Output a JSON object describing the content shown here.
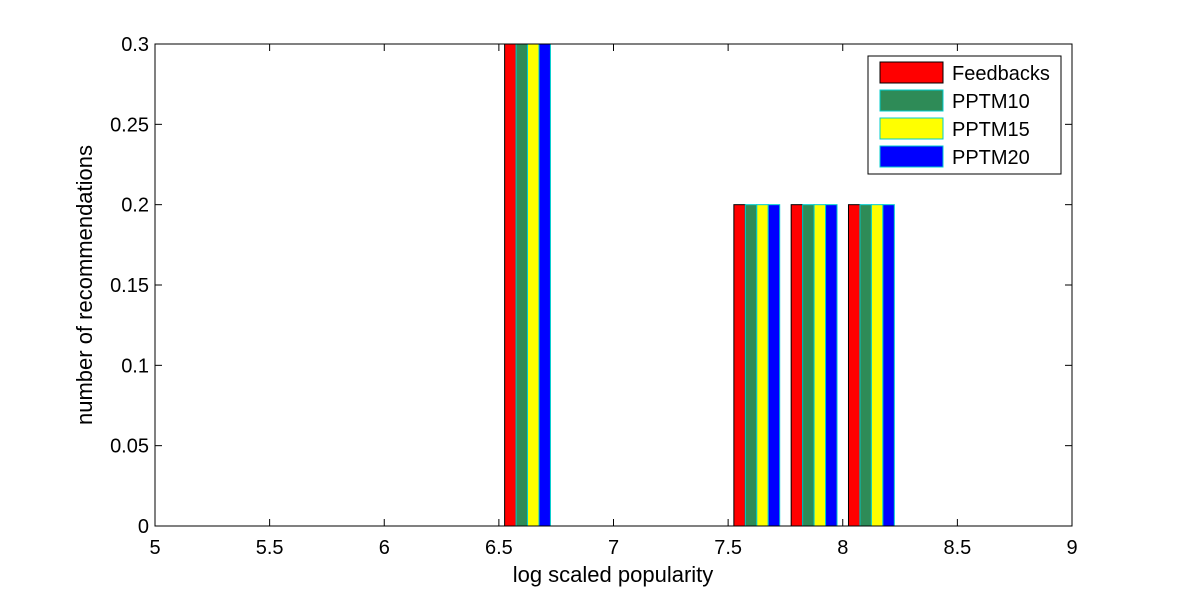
{
  "chart_data": {
    "type": "bar",
    "xlabel": "log scaled popularity",
    "ylabel": "number of recommendations",
    "xlim": [
      5,
      9
    ],
    "ylim": [
      0,
      0.3
    ],
    "x_ticks": [
      "5",
      "5.5",
      "6",
      "6.5",
      "7",
      "7.5",
      "8",
      "8.5",
      "9"
    ],
    "y_ticks": [
      "0",
      "0.05",
      "0.1",
      "0.15",
      "0.2",
      "0.25",
      "0.3"
    ],
    "x": [
      5.125,
      5.375,
      5.625,
      5.875,
      6.125,
      6.375,
      6.625,
      6.875,
      7.125,
      7.375,
      7.625,
      7.875,
      8.125,
      8.375,
      8.625,
      8.875
    ],
    "series": [
      {
        "name": "Feedbacks",
        "color": "#ff0000",
        "values": [
          0,
          0,
          0,
          0,
          0,
          0,
          0.3,
          0,
          0,
          0,
          0.2,
          0.2,
          0.2,
          0,
          0,
          0
        ]
      },
      {
        "name": "PPTM10",
        "color": "#2e8b57",
        "values": [
          0,
          0,
          0,
          0,
          0,
          0,
          0.3,
          0,
          0,
          0,
          0.2,
          0.2,
          0.2,
          0,
          0,
          0
        ]
      },
      {
        "name": "PPTM15",
        "color": "#ffff00",
        "values": [
          0,
          0,
          0,
          0,
          0,
          0,
          0.3,
          0,
          0,
          0,
          0.2,
          0.2,
          0.2,
          0,
          0,
          0
        ]
      },
      {
        "name": "PPTM20",
        "color": "#0000ff",
        "values": [
          0,
          0,
          0,
          0,
          0,
          0,
          0.3,
          0,
          0,
          0,
          0.2,
          0.2,
          0.2,
          0,
          0,
          0
        ]
      }
    ],
    "bar_edge_color": "#00cccc",
    "grid": false,
    "legend_position": "top-right"
  }
}
